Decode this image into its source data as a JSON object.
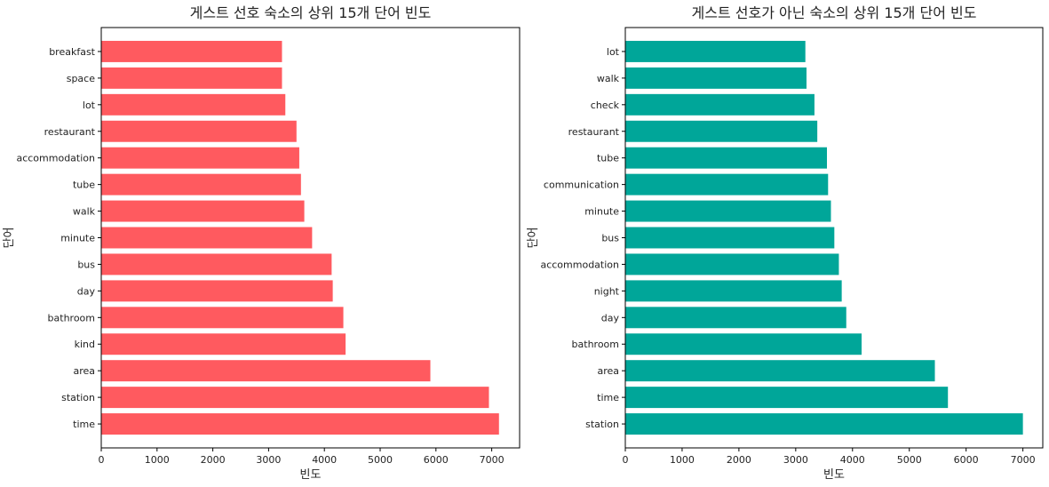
{
  "chart_data": [
    {
      "type": "bar",
      "orientation": "horizontal",
      "title": "게스트 선호 숙소의 상위 15개 단어 빈도",
      "xlabel": "빈도",
      "ylabel": "단어",
      "xlim": [
        0,
        7500
      ],
      "xticks": [
        0,
        1000,
        2000,
        3000,
        4000,
        5000,
        6000,
        7000
      ],
      "bar_color": "#ff5a5f",
      "categories": [
        "time",
        "station",
        "area",
        "kind",
        "bathroom",
        "day",
        "bus",
        "minute",
        "walk",
        "tube",
        "accommodation",
        "restaurant",
        "lot",
        "space",
        "breakfast"
      ],
      "values": [
        7130,
        6950,
        5900,
        4380,
        4340,
        4150,
        4130,
        3780,
        3640,
        3580,
        3550,
        3500,
        3300,
        3240,
        3240
      ]
    },
    {
      "type": "bar",
      "orientation": "horizontal",
      "title": "게스트 선호가 아닌 숙소의 상위 15개 단어 빈도",
      "xlabel": "빈도",
      "ylabel": "단어",
      "xlim": [
        0,
        7350
      ],
      "xticks": [
        0,
        1000,
        2000,
        3000,
        4000,
        5000,
        6000,
        7000
      ],
      "bar_color": "#00a699",
      "categories": [
        "station",
        "time",
        "area",
        "bathroom",
        "day",
        "night",
        "accommodation",
        "bus",
        "minute",
        "communication",
        "tube",
        "restaurant",
        "check",
        "walk",
        "lot"
      ],
      "values": [
        7000,
        5680,
        5450,
        4160,
        3890,
        3810,
        3760,
        3680,
        3620,
        3570,
        3550,
        3380,
        3330,
        3190,
        3170
      ]
    }
  ]
}
